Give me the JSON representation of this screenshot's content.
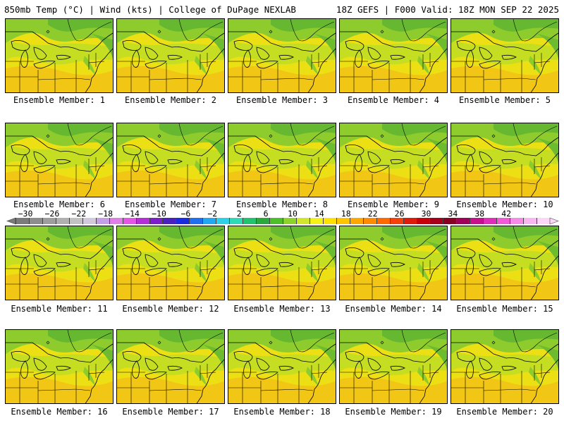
{
  "header": {
    "left": "850mb Temp (°C) | Wind (kts) | College of DuPage NEXLAB",
    "right": "18Z GEFS | F000 Valid: 18Z MON SEP 22 2025"
  },
  "members": [
    {
      "label": "Ensemble Member: 1"
    },
    {
      "label": "Ensemble Member: 2"
    },
    {
      "label": "Ensemble Member: 3"
    },
    {
      "label": "Ensemble Member: 4"
    },
    {
      "label": "Ensemble Member: 5"
    },
    {
      "label": "Ensemble Member: 6"
    },
    {
      "label": "Ensemble Member: 7"
    },
    {
      "label": "Ensemble Member: 8"
    },
    {
      "label": "Ensemble Member: 9"
    },
    {
      "label": "Ensemble Member: 10"
    },
    {
      "label": "Ensemble Member: 11"
    },
    {
      "label": "Ensemble Member: 12"
    },
    {
      "label": "Ensemble Member: 13"
    },
    {
      "label": "Ensemble Member: 14"
    },
    {
      "label": "Ensemble Member: 15"
    },
    {
      "label": "Ensemble Member: 16"
    },
    {
      "label": "Ensemble Member: 17"
    },
    {
      "label": "Ensemble Member: 18"
    },
    {
      "label": "Ensemble Member: 19"
    },
    {
      "label": "Ensemble Member: 20"
    }
  ],
  "colorbar": {
    "labels": [
      "−30",
      "−26",
      "−22",
      "−18",
      "−14",
      "−10",
      "−6",
      "−2",
      "2",
      "6",
      "10",
      "14",
      "18",
      "22",
      "26",
      "30",
      "34",
      "38",
      "42"
    ],
    "colors": [
      "#7a7a7a",
      "#8d8d8d",
      "#9e9e9e",
      "#b0b0b0",
      "#c2c2c2",
      "#d3c9dd",
      "#c69ee6",
      "#e07ee8",
      "#e455e6",
      "#b430d6",
      "#7c1fc9",
      "#4a1fbf",
      "#1a2be0",
      "#1f6ff0",
      "#22a8f2",
      "#2ed0e8",
      "#2fd9b6",
      "#22c26f",
      "#2aa83c",
      "#4cbf2a",
      "#8ed32a",
      "#cfe62a",
      "#f3f01a",
      "#ffe000",
      "#ffc400",
      "#ffa800",
      "#ff8c00",
      "#ff6a00",
      "#f5400a",
      "#e01a0a",
      "#c8000a",
      "#a8001a",
      "#8a0024",
      "#a0005a",
      "#c8108c",
      "#e02cb8",
      "#ef5ad6",
      "#f58be6",
      "#f8b6f0",
      "#fbd6f6"
    ],
    "colors_meaning": "850mb temperature shading from about -32C (gray) through purples/blues/greens to yellows, oranges, reds and pinks at 42C+"
  },
  "map_colors": {
    "cool": "#62b82e",
    "mild": "#a8d62a",
    "warm": "#f0e412",
    "hot": "#f5c40f",
    "outline": "#000000"
  }
}
